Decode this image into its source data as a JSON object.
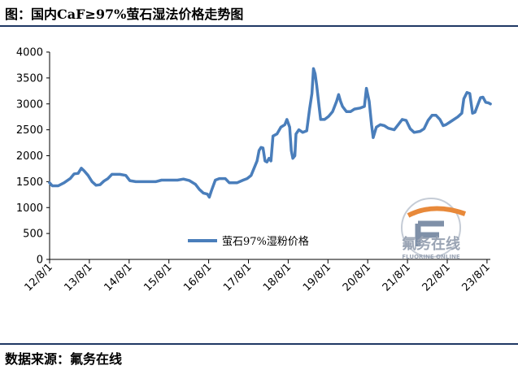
{
  "title": "图：国内CaF≥97%萤石湿法价格走势图",
  "source": "数据来源：氟务在线",
  "watermark": {
    "main": "氟务在线",
    "sub": "FLUORINE ONLINE"
  },
  "colors": {
    "series": "#4a7ebb",
    "rule": "#1f3864",
    "watermark": "#9aa4b4",
    "watermark_accent": "#e8893a"
  },
  "chart_data": {
    "type": "line",
    "title": "",
    "xlabel": "",
    "ylabel": "",
    "ylim": [
      0,
      4000
    ],
    "yticks": [
      0,
      500,
      1000,
      1500,
      2000,
      2500,
      3000,
      3500,
      4000
    ],
    "xlim": [
      2012.583,
      2023.667
    ],
    "xticks": [
      {
        "label": "12/8/1",
        "x": 2012.583
      },
      {
        "label": "13/8/1",
        "x": 2013.583
      },
      {
        "label": "14/8/1",
        "x": 2014.583
      },
      {
        "label": "15/8/1",
        "x": 2015.583
      },
      {
        "label": "16/8/1",
        "x": 2016.583
      },
      {
        "label": "17/8/1",
        "x": 2017.583
      },
      {
        "label": "18/8/1",
        "x": 2018.583
      },
      {
        "label": "19/8/1",
        "x": 2019.583
      },
      {
        "label": "20/8/1",
        "x": 2020.583
      },
      {
        "label": "21/8/1",
        "x": 2021.583
      },
      {
        "label": "22/8/1",
        "x": 2022.583
      },
      {
        "label": "23/8/1",
        "x": 2023.583
      }
    ],
    "grid": false,
    "legend_position": "bottom-center",
    "series": [
      {
        "name": "萤石97%湿粉价格",
        "color": "#4a7ebb",
        "points": [
          [
            2012.58,
            1480
          ],
          [
            2012.65,
            1420
          ],
          [
            2012.8,
            1420
          ],
          [
            2012.95,
            1480
          ],
          [
            2013.1,
            1560
          ],
          [
            2013.2,
            1650
          ],
          [
            2013.3,
            1660
          ],
          [
            2013.38,
            1760
          ],
          [
            2013.45,
            1710
          ],
          [
            2013.55,
            1620
          ],
          [
            2013.65,
            1500
          ],
          [
            2013.75,
            1430
          ],
          [
            2013.85,
            1440
          ],
          [
            2013.95,
            1510
          ],
          [
            2014.05,
            1560
          ],
          [
            2014.15,
            1640
          ],
          [
            2014.35,
            1640
          ],
          [
            2014.5,
            1620
          ],
          [
            2014.6,
            1520
          ],
          [
            2014.75,
            1500
          ],
          [
            2015.0,
            1500
          ],
          [
            2015.25,
            1500
          ],
          [
            2015.4,
            1530
          ],
          [
            2015.6,
            1530
          ],
          [
            2015.8,
            1530
          ],
          [
            2015.95,
            1550
          ],
          [
            2016.1,
            1520
          ],
          [
            2016.25,
            1450
          ],
          [
            2016.35,
            1350
          ],
          [
            2016.45,
            1280
          ],
          [
            2016.55,
            1260
          ],
          [
            2016.6,
            1200
          ],
          [
            2016.65,
            1320
          ],
          [
            2016.75,
            1530
          ],
          [
            2016.85,
            1560
          ],
          [
            2017.0,
            1560
          ],
          [
            2017.1,
            1480
          ],
          [
            2017.3,
            1480
          ],
          [
            2017.45,
            1530
          ],
          [
            2017.55,
            1560
          ],
          [
            2017.65,
            1620
          ],
          [
            2017.72,
            1750
          ],
          [
            2017.8,
            1900
          ],
          [
            2017.85,
            2100
          ],
          [
            2017.9,
            2160
          ],
          [
            2017.95,
            2150
          ],
          [
            2018.0,
            1900
          ],
          [
            2018.05,
            1880
          ],
          [
            2018.1,
            1950
          ],
          [
            2018.15,
            1900
          ],
          [
            2018.2,
            2380
          ],
          [
            2018.3,
            2420
          ],
          [
            2018.4,
            2550
          ],
          [
            2018.5,
            2600
          ],
          [
            2018.55,
            2700
          ],
          [
            2018.62,
            2550
          ],
          [
            2018.66,
            2100
          ],
          [
            2018.7,
            1950
          ],
          [
            2018.75,
            2000
          ],
          [
            2018.78,
            2420
          ],
          [
            2018.85,
            2500
          ],
          [
            2018.95,
            2450
          ],
          [
            2019.05,
            2480
          ],
          [
            2019.12,
            2900
          ],
          [
            2019.18,
            3200
          ],
          [
            2019.22,
            3680
          ],
          [
            2019.26,
            3580
          ],
          [
            2019.3,
            3350
          ],
          [
            2019.36,
            2950
          ],
          [
            2019.4,
            2700
          ],
          [
            2019.5,
            2700
          ],
          [
            2019.6,
            2760
          ],
          [
            2019.7,
            2850
          ],
          [
            2019.8,
            3050
          ],
          [
            2019.85,
            3180
          ],
          [
            2019.9,
            3050
          ],
          [
            2019.95,
            2950
          ],
          [
            2020.05,
            2850
          ],
          [
            2020.15,
            2850
          ],
          [
            2020.25,
            2900
          ],
          [
            2020.4,
            2920
          ],
          [
            2020.5,
            2950
          ],
          [
            2020.55,
            3300
          ],
          [
            2020.62,
            3050
          ],
          [
            2020.68,
            2600
          ],
          [
            2020.72,
            2350
          ],
          [
            2020.8,
            2550
          ],
          [
            2020.9,
            2600
          ],
          [
            2021.0,
            2580
          ],
          [
            2021.1,
            2530
          ],
          [
            2021.25,
            2500
          ],
          [
            2021.35,
            2600
          ],
          [
            2021.45,
            2700
          ],
          [
            2021.55,
            2680
          ],
          [
            2021.65,
            2520
          ],
          [
            2021.75,
            2450
          ],
          [
            2021.9,
            2470
          ],
          [
            2022.0,
            2520
          ],
          [
            2022.1,
            2680
          ],
          [
            2022.2,
            2780
          ],
          [
            2022.3,
            2780
          ],
          [
            2022.4,
            2700
          ],
          [
            2022.48,
            2580
          ],
          [
            2022.55,
            2600
          ],
          [
            2022.65,
            2650
          ],
          [
            2022.75,
            2700
          ],
          [
            2022.85,
            2750
          ],
          [
            2022.95,
            2820
          ],
          [
            2023.0,
            3100
          ],
          [
            2023.08,
            3220
          ],
          [
            2023.15,
            3200
          ],
          [
            2023.22,
            2820
          ],
          [
            2023.28,
            2840
          ],
          [
            2023.35,
            2980
          ],
          [
            2023.42,
            3120
          ],
          [
            2023.48,
            3130
          ],
          [
            2023.55,
            3030
          ],
          [
            2023.62,
            3020
          ],
          [
            2023.67,
            3000
          ]
        ]
      }
    ]
  }
}
